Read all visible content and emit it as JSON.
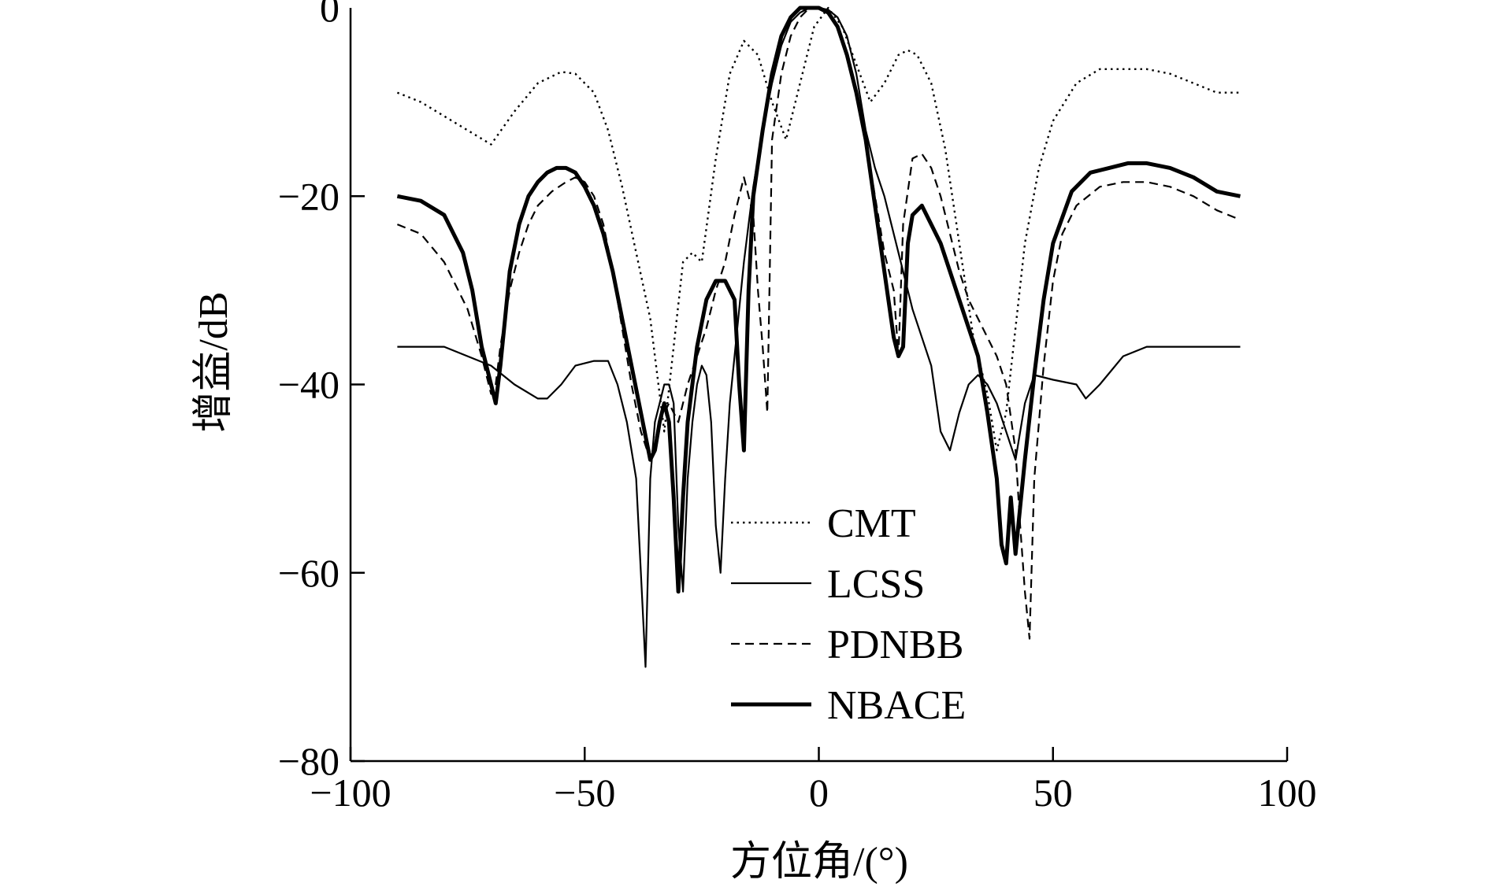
{
  "chart_data": {
    "type": "line",
    "xlabel": "方位角/(°)",
    "ylabel": "增益/dB",
    "xlim": [
      -100,
      100
    ],
    "ylim": [
      -80,
      0
    ],
    "xticks": [
      -100,
      -50,
      0,
      50,
      100
    ],
    "yticks": [
      0,
      -20,
      -40,
      -60,
      -80
    ],
    "xtick_labels": [
      "−100",
      "−50",
      "0",
      "50",
      "100"
    ],
    "ytick_labels": [
      "0",
      "−20",
      "−40",
      "−60",
      "−80"
    ],
    "grid": false,
    "legend_position": "lower-center",
    "series": [
      {
        "name": "CMT",
        "style": "dotted",
        "x": [
          -90,
          -85,
          -80,
          -75,
          -70,
          -65,
          -60,
          -55,
          -52,
          -48,
          -45,
          -42,
          -39,
          -36,
          -35,
          -33,
          -31,
          -29,
          -27,
          -25,
          -22,
          -19,
          -16,
          -13,
          -10,
          -7,
          -4,
          -1,
          2,
          5,
          8,
          11,
          14,
          17,
          19,
          21,
          24,
          27,
          30,
          33,
          36,
          38,
          40,
          42,
          44,
          47,
          50,
          55,
          60,
          65,
          70,
          75,
          80,
          85,
          90
        ],
        "y": [
          -9,
          -10,
          -11.5,
          -13,
          -14.5,
          -11,
          -8,
          -6.8,
          -7,
          -9,
          -13,
          -19,
          -26,
          -33,
          -37,
          -45,
          -36,
          -27,
          -26,
          -27,
          -16,
          -7,
          -3.5,
          -5,
          -10,
          -14,
          -8,
          -2,
          0,
          -2,
          -6,
          -10,
          -8,
          -5,
          -4.5,
          -5,
          -8,
          -15,
          -25,
          -35,
          -41,
          -47,
          -43,
          -34,
          -25,
          -17,
          -12,
          -8,
          -6.5,
          -6.5,
          -6.5,
          -7,
          -8,
          -9,
          -9
        ]
      },
      {
        "name": "LCSS",
        "style": "solid-thin",
        "x": [
          -90,
          -80,
          -75,
          -70,
          -65,
          -60,
          -58,
          -55,
          -52,
          -48,
          -45,
          -43,
          -41,
          -39,
          -38,
          -37,
          -36,
          -35,
          -34,
          -33,
          -32,
          -31,
          -30,
          -29,
          -28,
          -27,
          -26,
          -25,
          -24,
          -23,
          -22,
          -21,
          -20,
          -19,
          -18,
          -17,
          -16,
          -15,
          -14,
          -12,
          -10,
          -8,
          -6,
          -4,
          -2,
          0,
          2,
          4,
          6,
          8,
          10,
          12,
          14,
          16,
          18,
          20,
          22,
          24,
          26,
          28,
          30,
          32,
          34,
          36,
          38,
          40,
          42,
          44,
          46,
          50,
          55,
          57,
          60,
          65,
          70,
          75,
          80,
          85,
          90
        ],
        "y": [
          -36,
          -36,
          -37,
          -38,
          -40,
          -41.5,
          -41.5,
          -40,
          -38,
          -37.5,
          -37.5,
          -40,
          -44,
          -50,
          -60,
          -70,
          -50,
          -44,
          -42,
          -40,
          -40,
          -42,
          -55,
          -62,
          -50,
          -44,
          -40,
          -38,
          -39,
          -44,
          -55,
          -60,
          -50,
          -42,
          -37,
          -32,
          -27,
          -23,
          -19,
          -13,
          -8,
          -4,
          -1.5,
          -0.5,
          0,
          0,
          -0.2,
          -1,
          -3,
          -7,
          -13,
          -17,
          -20,
          -24,
          -28,
          -32,
          -35,
          -38,
          -45,
          -47,
          -43,
          -40,
          -39,
          -40,
          -42,
          -45,
          -48,
          -42,
          -39,
          -39.5,
          -40,
          -41.5,
          -40,
          -37,
          -36,
          -36,
          -36,
          -36,
          -36
        ]
      },
      {
        "name": "PDNBB",
        "style": "dashed",
        "x": [
          -90,
          -85,
          -80,
          -75,
          -72,
          -70,
          -69,
          -68,
          -66,
          -64,
          -62,
          -60,
          -57,
          -54,
          -52,
          -50,
          -48,
          -46,
          -44,
          -42,
          -40,
          -38,
          -36,
          -34,
          -32,
          -30,
          -28,
          -26,
          -24,
          -22,
          -20,
          -18,
          -16,
          -14,
          -13,
          -12,
          -11,
          -10,
          -8,
          -6,
          -4,
          -2,
          0,
          2,
          4,
          6,
          8,
          10,
          12,
          14,
          16,
          17,
          18,
          20,
          22,
          24,
          26,
          28,
          30,
          32,
          34,
          36,
          38,
          40,
          42,
          43,
          44,
          45,
          46,
          48,
          50,
          52,
          55,
          60,
          65,
          70,
          75,
          80,
          85,
          90
        ],
        "y": [
          -23,
          -24,
          -27,
          -32,
          -37,
          -41,
          -40,
          -36,
          -30,
          -26,
          -23,
          -21,
          -19.5,
          -18.5,
          -18,
          -18.5,
          -20,
          -23,
          -28,
          -34,
          -40,
          -45,
          -48,
          -44,
          -42,
          -44,
          -40,
          -37,
          -34,
          -30,
          -27,
          -22,
          -18,
          -22,
          -30,
          -36,
          -43,
          -14,
          -7,
          -3,
          -1,
          0,
          0,
          -0.5,
          -2,
          -5,
          -9,
          -14,
          -20,
          -26,
          -30,
          -37,
          -23,
          -16,
          -15.5,
          -17,
          -20,
          -24,
          -28,
          -31,
          -33,
          -35,
          -37,
          -40,
          -47,
          -55,
          -62,
          -67,
          -50,
          -38,
          -29,
          -24,
          -21,
          -19,
          -18.5,
          -18.5,
          -19,
          -20,
          -21.5,
          -22.5
        ]
      },
      {
        "name": "NBACE",
        "style": "solid-thick",
        "x": [
          -90,
          -85,
          -80,
          -76,
          -74,
          -72,
          -70,
          -69,
          -68,
          -67,
          -66,
          -64,
          -62,
          -60,
          -58,
          -56,
          -54,
          -52,
          -50,
          -48,
          -46,
          -44,
          -42,
          -40,
          -38,
          -36,
          -35,
          -34,
          -33,
          -32,
          -31,
          -30,
          -29,
          -28,
          -26,
          -24,
          -22,
          -20,
          -18,
          -17,
          -16,
          -15,
          -14,
          -12,
          -10,
          -8,
          -6,
          -4,
          -2,
          0,
          2,
          4,
          6,
          8,
          10,
          12,
          14,
          16,
          17,
          18,
          19,
          20,
          22,
          24,
          26,
          28,
          30,
          32,
          34,
          36,
          38,
          39,
          40,
          41,
          42,
          43,
          44,
          46,
          48,
          50,
          54,
          58,
          62,
          66,
          70,
          75,
          80,
          85,
          90
        ],
        "y": [
          -20,
          -20.5,
          -22,
          -26,
          -30,
          -36,
          -40,
          -42,
          -38,
          -33,
          -28,
          -23,
          -20,
          -18.5,
          -17.5,
          -17,
          -17,
          -17.5,
          -19,
          -21,
          -24,
          -28,
          -33,
          -38,
          -43,
          -48,
          -47,
          -44,
          -42,
          -44,
          -52,
          -62,
          -52,
          -44,
          -36,
          -31,
          -29,
          -29,
          -31,
          -40,
          -47,
          -30,
          -20,
          -13,
          -7,
          -3,
          -1,
          0,
          0,
          0,
          -0.5,
          -2,
          -5,
          -9,
          -14,
          -21,
          -28,
          -35,
          -37,
          -36,
          -25,
          -22,
          -21,
          -23,
          -25,
          -28,
          -31,
          -34,
          -37,
          -43,
          -50,
          -57,
          -59,
          -52,
          -58,
          -53,
          -48,
          -39,
          -31,
          -25,
          -19.5,
          -17.5,
          -17,
          -16.5,
          -16.5,
          -17,
          -18,
          -19.5,
          -20
        ]
      }
    ]
  }
}
